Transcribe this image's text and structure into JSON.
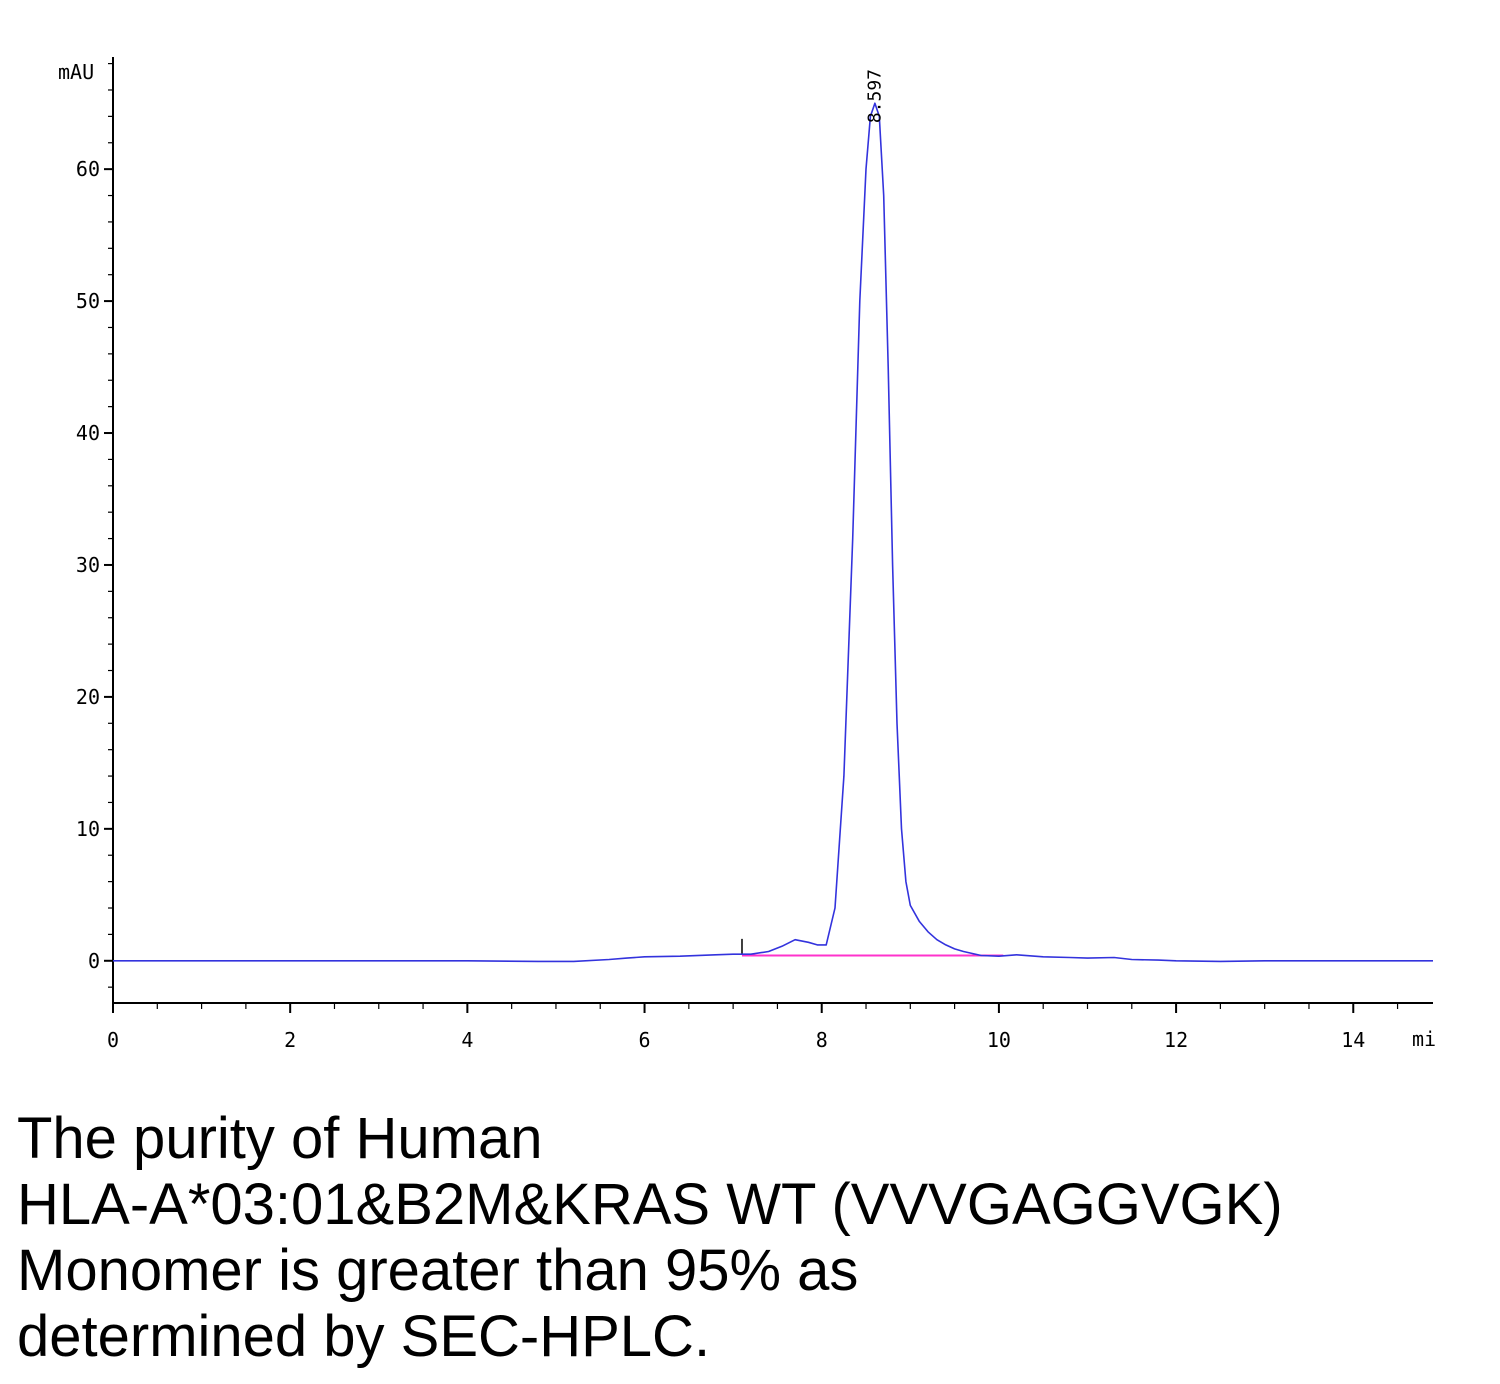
{
  "chart_data": {
    "type": "line",
    "ylabel": "mAU",
    "xlabel": "mi",
    "xlim": [
      0,
      14.9
    ],
    "ylim": [
      -3.2,
      68.5
    ],
    "x_ticks": [
      0,
      2,
      4,
      6,
      8,
      10,
      12,
      14
    ],
    "y_ticks": [
      0,
      10,
      20,
      30,
      40,
      50,
      60
    ],
    "grid": false,
    "peak_annotation": {
      "label": "8.597",
      "x": 8.597,
      "y": 65
    },
    "series": [
      {
        "color": "#3333dd",
        "x": [
          0,
          1,
          2,
          3,
          4,
          4.8,
          5.2,
          5.6,
          5.8,
          6.0,
          6.4,
          6.8,
          7.0,
          7.2,
          7.4,
          7.55,
          7.7,
          7.85,
          7.95,
          8.05,
          8.15,
          8.25,
          8.35,
          8.43,
          8.5,
          8.55,
          8.6,
          8.65,
          8.7,
          8.75,
          8.8,
          8.85,
          8.9,
          8.95,
          9.0,
          9.1,
          9.2,
          9.3,
          9.4,
          9.5,
          9.6,
          9.8,
          10.0,
          10.2,
          10.5,
          10.8,
          11.0,
          11.3,
          11.5,
          11.8,
          12.0,
          12.5,
          13.0,
          14.0,
          14.9
        ],
        "y": [
          0,
          0,
          0,
          0,
          0,
          -0.05,
          -0.05,
          0.1,
          0.2,
          0.3,
          0.35,
          0.45,
          0.5,
          0.5,
          0.7,
          1.1,
          1.6,
          1.4,
          1.2,
          1.2,
          4.0,
          14.0,
          32.0,
          50.0,
          60.0,
          64.0,
          65.0,
          64.0,
          58.0,
          45.0,
          30.0,
          18.0,
          10.0,
          6.0,
          4.2,
          3.0,
          2.2,
          1.6,
          1.2,
          0.9,
          0.7,
          0.4,
          0.35,
          0.45,
          0.3,
          0.25,
          0.2,
          0.25,
          0.1,
          0.05,
          0,
          -0.05,
          0,
          0,
          0
        ]
      }
    ],
    "baseline": {
      "color": "#ff33cc",
      "x": [
        7.1,
        10.05
      ],
      "y": [
        0.4,
        0.4
      ]
    },
    "markers": [
      {
        "x": 7.1,
        "y": 0.6
      }
    ]
  },
  "caption": {
    "lines": [
      "The purity of Human",
      "HLA-A*03:01&B2M&KRAS WT (VVVGAGGVGK)",
      "Monomer is greater than 95% as",
      "determined by SEC-HPLC."
    ]
  }
}
